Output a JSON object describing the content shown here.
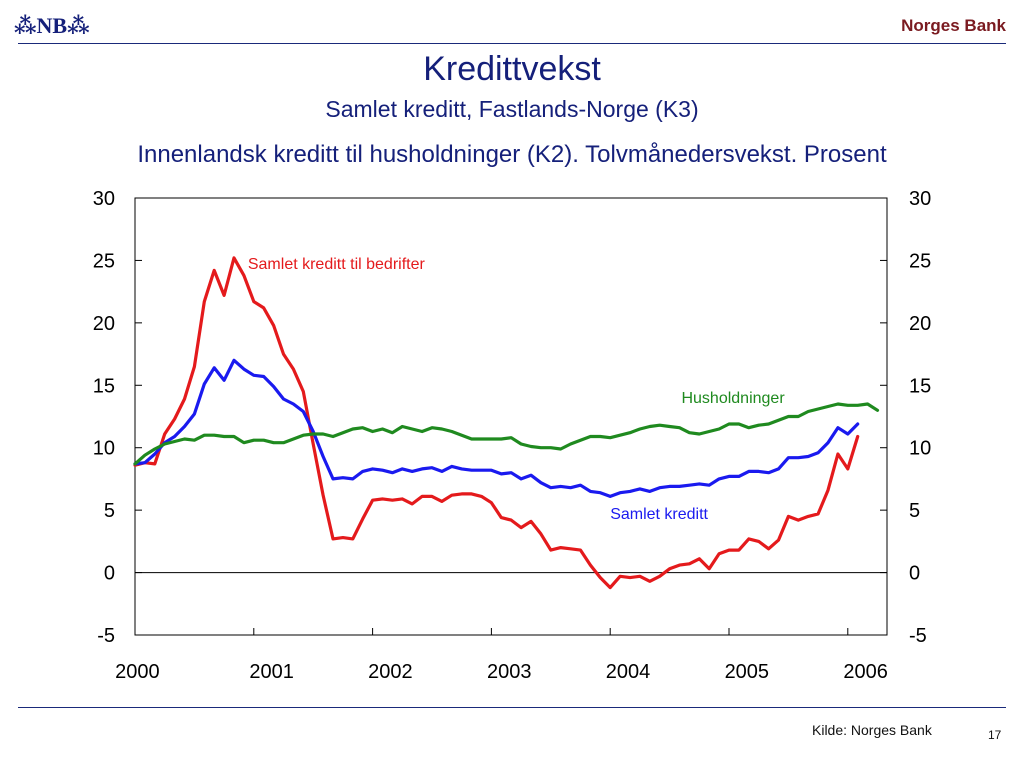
{
  "header": {
    "logo_text": "⁂NB⁂",
    "bank_name": "Norges Bank"
  },
  "slide": {
    "title": "Kredittvekst",
    "subtitle": "Samlet kreditt, Fastlands-Norge (K3)",
    "source": "Kilde: Norges Bank",
    "page_number": "17"
  },
  "colors": {
    "red": "#e41a1c",
    "blue": "#1a1aef",
    "green": "#1f8a1f",
    "navy": "#15207a"
  },
  "chart_data": {
    "type": "line",
    "title": "Innenlandsk kreditt til husholdninger (K2). Tolvmånedersvekst. Prosent",
    "xlabel": "",
    "ylabel": "",
    "xlim": [
      2000.0,
      2006.33
    ],
    "ylim": [
      -5,
      30
    ],
    "yticks": [
      30,
      25,
      20,
      15,
      10,
      5,
      0,
      -5
    ],
    "ytick_labels": [
      "30",
      "25",
      "20",
      "15",
      "10",
      "5",
      "0",
      "-5"
    ],
    "xtick_labels": [
      "2000",
      "2001",
      "2002",
      "2003",
      "2004",
      "2005",
      "2006"
    ],
    "x_start": 2000.0,
    "x_step": 0.0833333,
    "series": [
      {
        "name": "Samlet kreditt til bedrifter",
        "color": "#e41a1c",
        "label_pos": "upper-left",
        "values": [
          8.6,
          8.8,
          8.7,
          11.1,
          12.3,
          13.9,
          16.5,
          21.7,
          24.2,
          22.2,
          25.2,
          23.8,
          21.7,
          21.2,
          19.8,
          17.5,
          16.3,
          14.5,
          10.3,
          6.2,
          2.7,
          2.8,
          2.7,
          4.3,
          5.8,
          5.9,
          5.8,
          5.9,
          5.5,
          6.1,
          6.1,
          5.7,
          6.2,
          6.3,
          6.3,
          6.1,
          5.6,
          4.4,
          4.2,
          3.6,
          4.1,
          3.1,
          1.8,
          2.0,
          1.9,
          1.8,
          0.6,
          -0.4,
          -1.2,
          -0.3,
          -0.4,
          -0.3,
          -0.7,
          -0.3,
          0.3,
          0.6,
          0.7,
          1.1,
          0.3,
          1.5,
          1.8,
          1.8,
          2.7,
          2.5,
          1.9,
          2.6,
          4.5,
          4.2,
          4.5,
          4.7,
          6.6,
          9.5,
          8.3,
          10.9
        ]
      },
      {
        "name": "Samlet kreditt",
        "color": "#1a1aef",
        "label_pos": "lower-middle",
        "values": [
          8.7,
          8.8,
          9.5,
          10.4,
          10.9,
          11.7,
          12.7,
          15.1,
          16.4,
          15.4,
          17.0,
          16.3,
          15.8,
          15.7,
          14.9,
          13.9,
          13.5,
          12.9,
          11.3,
          9.3,
          7.5,
          7.6,
          7.5,
          8.1,
          8.3,
          8.2,
          8.0,
          8.3,
          8.1,
          8.3,
          8.4,
          8.1,
          8.5,
          8.3,
          8.2,
          8.2,
          8.2,
          7.9,
          8.0,
          7.5,
          7.8,
          7.2,
          6.8,
          6.9,
          6.8,
          7.0,
          6.5,
          6.4,
          6.1,
          6.4,
          6.5,
          6.7,
          6.5,
          6.8,
          6.9,
          6.9,
          7.0,
          7.1,
          7.0,
          7.5,
          7.7,
          7.7,
          8.1,
          8.1,
          8.0,
          8.3,
          9.2,
          9.2,
          9.3,
          9.6,
          10.4,
          11.6,
          11.1,
          11.9
        ]
      },
      {
        "name": "Husholdninger",
        "color": "#1f8a1f",
        "label_pos": "middle-right",
        "values": [
          8.7,
          9.4,
          9.9,
          10.3,
          10.5,
          10.7,
          10.6,
          11.0,
          11.0,
          10.9,
          10.9,
          10.4,
          10.6,
          10.6,
          10.4,
          10.4,
          10.7,
          11.0,
          11.1,
          11.1,
          10.9,
          11.2,
          11.5,
          11.6,
          11.3,
          11.5,
          11.2,
          11.7,
          11.5,
          11.3,
          11.6,
          11.5,
          11.3,
          11.0,
          10.7,
          10.7,
          10.7,
          10.7,
          10.8,
          10.3,
          10.1,
          10.0,
          10.0,
          9.9,
          10.3,
          10.6,
          10.9,
          10.9,
          10.8,
          11.0,
          11.2,
          11.5,
          11.7,
          11.8,
          11.7,
          11.6,
          11.2,
          11.1,
          11.3,
          11.5,
          11.9,
          11.9,
          11.6,
          11.8,
          11.9,
          12.2,
          12.5,
          12.5,
          12.9,
          13.1,
          13.3,
          13.5,
          13.4,
          13.4,
          13.5,
          13.0
        ]
      }
    ]
  }
}
